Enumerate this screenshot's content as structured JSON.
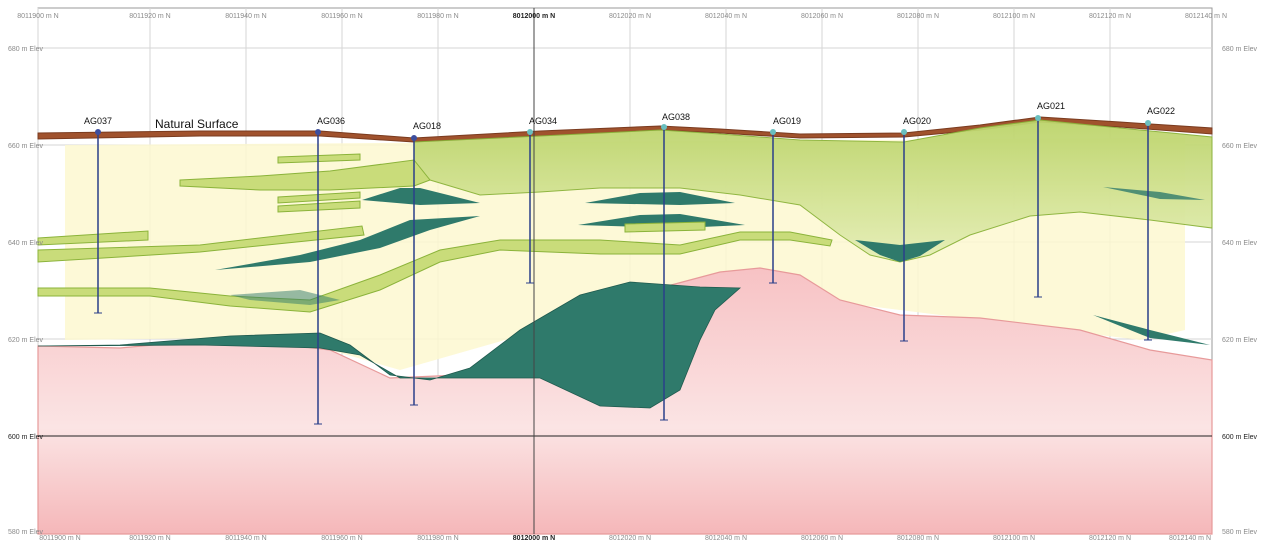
{
  "northing_labels": [
    {
      "text": "8011900 m N",
      "major": false
    },
    {
      "text": "8011920 m N",
      "major": false
    },
    {
      "text": "8011940 m N",
      "major": false
    },
    {
      "text": "8011960 m N",
      "major": false
    },
    {
      "text": "8011980 m N",
      "major": false
    },
    {
      "text": "8012000 m N",
      "major": true
    },
    {
      "text": "8012020 m N",
      "major": false
    },
    {
      "text": "8012040 m N",
      "major": false
    },
    {
      "text": "8012060 m N",
      "major": false
    },
    {
      "text": "8012080 m N",
      "major": false
    },
    {
      "text": "8012100 m N",
      "major": false
    },
    {
      "text": "8012120 m N",
      "major": false
    },
    {
      "text": "8012140 m N",
      "major": false
    }
  ],
  "elevation_labels": [
    {
      "text": "660 m Elev",
      "major": false
    },
    {
      "text": "640 m Elev",
      "major": false
    },
    {
      "text": "620 m Elev",
      "major": false
    },
    {
      "text": "600 m Elev",
      "major": true
    },
    {
      "text": "580 m Elev",
      "major": false
    }
  ],
  "top_elevation_label": "680 m Elev",
  "surface_label": "Natural Surface",
  "drillholes": [
    {
      "name": "AG037"
    },
    {
      "name": "AG036"
    },
    {
      "name": "AG018"
    },
    {
      "name": "AG034"
    },
    {
      "name": "AG038"
    },
    {
      "name": "AG019"
    },
    {
      "name": "AG020"
    },
    {
      "name": "AG021"
    },
    {
      "name": "AG022"
    }
  ],
  "colors": {
    "surface": "#a0522d",
    "basement": "#f4b7b9",
    "dark_lens": "#2f7a6b",
    "light_lens": "#c9dc7a",
    "fill": "#fdf8d0",
    "hole": "#2a3f8a"
  }
}
